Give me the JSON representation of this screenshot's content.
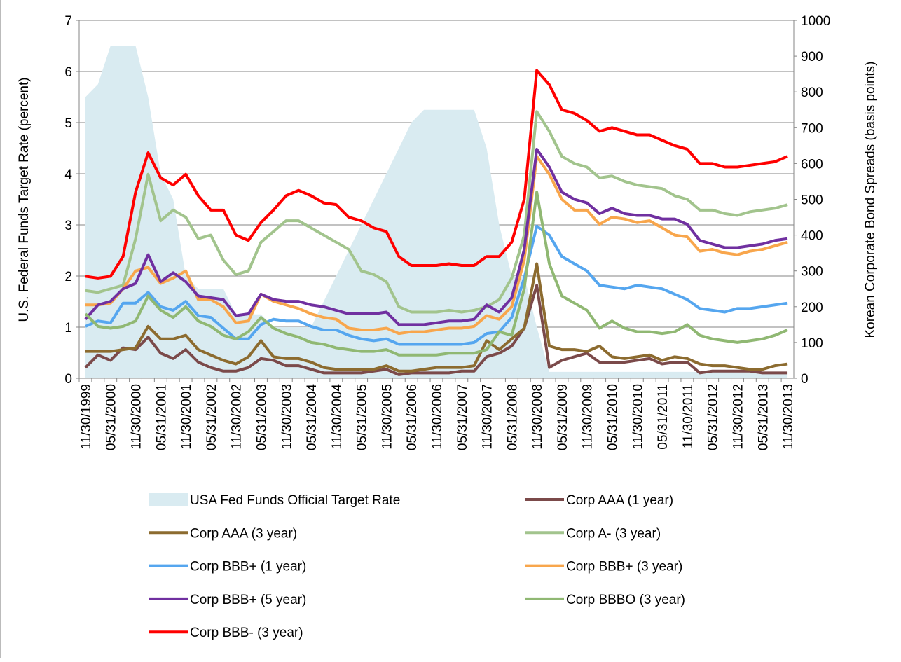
{
  "chart_data": {
    "type": "line",
    "categories": [
      "11/30/1999",
      null,
      "05/31/2000",
      null,
      "11/30/2000",
      null,
      "05/31/2001",
      null,
      "11/30/2001",
      null,
      "05/31/2002",
      null,
      "11/30/2002",
      null,
      "05/31/2003",
      null,
      "11/30/2003",
      null,
      "05/31/2004",
      null,
      "11/30/2004",
      null,
      "05/31/2005",
      null,
      "11/30/2005",
      null,
      "05/31/2006",
      null,
      "11/30/2006",
      null,
      "05/31/2007",
      null,
      "11/30/2007",
      null,
      "05/31/2008",
      null,
      "11/30/2008",
      null,
      "05/31/2009",
      null,
      "11/30/2009",
      null,
      "05/31/2010",
      null,
      "11/30/2010",
      null,
      "05/31/2011",
      null,
      "11/30/2011",
      null,
      "05/31/2012",
      null,
      "11/30/2012",
      null,
      "05/31/2013",
      null,
      "11/30/2013"
    ],
    "ylabel": "U.S. Federal Funds Target Rate (percent)",
    "y2label": "Korean Corporate Bond Spreads (basis points)",
    "ylim": [
      0,
      7
    ],
    "yticks": [
      0,
      1,
      2,
      3,
      4,
      5,
      6,
      7
    ],
    "y2lim": [
      0,
      1000
    ],
    "y2ticks": [
      0,
      100,
      200,
      300,
      400,
      500,
      600,
      700,
      800,
      900,
      1000
    ],
    "grid": true,
    "legend": "bottom",
    "series": [
      {
        "name": "USA Fed Funds Official Target Rate",
        "type": "area",
        "color": "#d9ebf1",
        "values": [
          5.5,
          5.75,
          6.5,
          6.5,
          6.5,
          5.5,
          4.0,
          3.5,
          2.0,
          1.75,
          1.75,
          1.75,
          1.25,
          1.25,
          1.25,
          1.0,
          1.0,
          1.0,
          1.0,
          1.5,
          2.0,
          2.5,
          3.0,
          3.5,
          4.0,
          4.5,
          5.0,
          5.25,
          5.25,
          5.25,
          5.25,
          5.25,
          4.5,
          3.0,
          2.0,
          2.0,
          1.0,
          0.125,
          0.125,
          0.125,
          0.125,
          0.125,
          0.125,
          0.125,
          0.125,
          0.125,
          0.125,
          0.125,
          0.125,
          0.125,
          0.125,
          0.125,
          0.125,
          0.125,
          0.125,
          0.125,
          0.125
        ]
      },
      {
        "name": "Corp AAA (1 year)",
        "axis": "y2",
        "color": "#7b4a4a",
        "values": [
          30,
          65,
          50,
          85,
          80,
          115,
          70,
          55,
          80,
          45,
          30,
          20,
          20,
          30,
          55,
          50,
          35,
          35,
          25,
          15,
          15,
          15,
          15,
          20,
          25,
          10,
          15,
          15,
          15,
          15,
          20,
          20,
          60,
          70,
          90,
          140,
          260,
          30,
          50,
          60,
          70,
          45,
          45,
          45,
          50,
          55,
          40,
          45,
          45,
          15,
          20,
          20,
          20,
          20,
          15,
          15,
          15
        ]
      },
      {
        "name": "Corp AAA (3 year)",
        "axis": "y2",
        "color": "#8c6b2f",
        "values": [
          75,
          75,
          75,
          80,
          85,
          145,
          110,
          110,
          120,
          80,
          65,
          50,
          40,
          60,
          105,
          60,
          55,
          55,
          45,
          30,
          25,
          25,
          25,
          25,
          35,
          20,
          20,
          25,
          30,
          30,
          30,
          35,
          105,
          80,
          110,
          140,
          320,
          90,
          80,
          80,
          75,
          90,
          60,
          55,
          60,
          65,
          50,
          60,
          55,
          40,
          35,
          35,
          30,
          25,
          25,
          35,
          40
        ]
      },
      {
        "name": "Corp A- (3 year)",
        "axis": "y2",
        "color": "#a2c48d",
        "values": [
          245,
          240,
          250,
          260,
          390,
          570,
          440,
          470,
          450,
          390,
          400,
          330,
          290,
          300,
          380,
          410,
          440,
          440,
          420,
          400,
          380,
          360,
          300,
          290,
          270,
          200,
          185,
          185,
          185,
          190,
          185,
          190,
          200,
          220,
          280,
          400,
          745,
          690,
          620,
          600,
          590,
          560,
          565,
          550,
          540,
          535,
          530,
          510,
          500,
          470,
          470,
          460,
          455,
          465,
          470,
          475,
          485
        ]
      },
      {
        "name": "Corp BBB+ (1 year)",
        "axis": "y2",
        "color": "#55a6ef",
        "values": [
          145,
          160,
          155,
          210,
          210,
          240,
          200,
          190,
          215,
          175,
          170,
          140,
          110,
          110,
          150,
          165,
          160,
          160,
          145,
          135,
          135,
          120,
          110,
          105,
          110,
          95,
          95,
          95,
          95,
          95,
          95,
          100,
          125,
          130,
          170,
          280,
          425,
          400,
          340,
          320,
          300,
          260,
          255,
          250,
          260,
          255,
          250,
          235,
          220,
          195,
          190,
          185,
          195,
          195,
          200,
          205,
          210
        ]
      },
      {
        "name": "Corp BBB+ (3 year)",
        "axis": "y2",
        "color": "#f8a64c",
        "values": [
          205,
          205,
          210,
          250,
          300,
          310,
          265,
          280,
          300,
          220,
          220,
          200,
          155,
          160,
          235,
          215,
          205,
          195,
          180,
          170,
          165,
          140,
          135,
          135,
          140,
          125,
          130,
          130,
          135,
          140,
          140,
          145,
          175,
          165,
          200,
          330,
          620,
          570,
          500,
          470,
          470,
          430,
          450,
          445,
          435,
          440,
          420,
          400,
          395,
          355,
          360,
          350,
          345,
          355,
          360,
          370,
          380
        ]
      },
      {
        "name": "Corp BBB+ (5 year)",
        "axis": "y2",
        "color": "#7030a0",
        "values": [
          165,
          205,
          215,
          250,
          265,
          345,
          270,
          295,
          270,
          230,
          225,
          220,
          175,
          180,
          235,
          220,
          215,
          215,
          205,
          200,
          190,
          180,
          180,
          180,
          185,
          150,
          150,
          150,
          155,
          160,
          160,
          165,
          205,
          185,
          225,
          360,
          640,
          590,
          520,
          500,
          490,
          460,
          475,
          460,
          455,
          455,
          445,
          445,
          430,
          385,
          375,
          365,
          365,
          370,
          375,
          385,
          390
        ]
      },
      {
        "name": "Corp BBBO (3 year)",
        "axis": "y2",
        "color": "#90b873",
        "values": [
          180,
          145,
          140,
          145,
          160,
          230,
          190,
          170,
          200,
          160,
          145,
          120,
          110,
          130,
          170,
          140,
          125,
          115,
          100,
          95,
          85,
          80,
          75,
          75,
          80,
          65,
          65,
          65,
          65,
          70,
          70,
          70,
          80,
          130,
          120,
          250,
          520,
          320,
          230,
          210,
          190,
          140,
          160,
          140,
          130,
          130,
          125,
          130,
          150,
          120,
          110,
          105,
          100,
          105,
          110,
          120,
          135
        ]
      },
      {
        "name": "Corp BBB- (3 year)",
        "axis": "y2",
        "color": "#ff0000",
        "values": [
          285,
          280,
          285,
          340,
          520,
          630,
          560,
          540,
          570,
          510,
          470,
          470,
          400,
          385,
          435,
          470,
          510,
          525,
          510,
          490,
          485,
          450,
          440,
          420,
          410,
          340,
          315,
          315,
          315,
          320,
          315,
          315,
          340,
          340,
          380,
          500,
          860,
          820,
          750,
          740,
          720,
          690,
          700,
          690,
          680,
          680,
          665,
          650,
          640,
          600,
          600,
          590,
          590,
          595,
          600,
          605,
          620
        ]
      }
    ]
  }
}
